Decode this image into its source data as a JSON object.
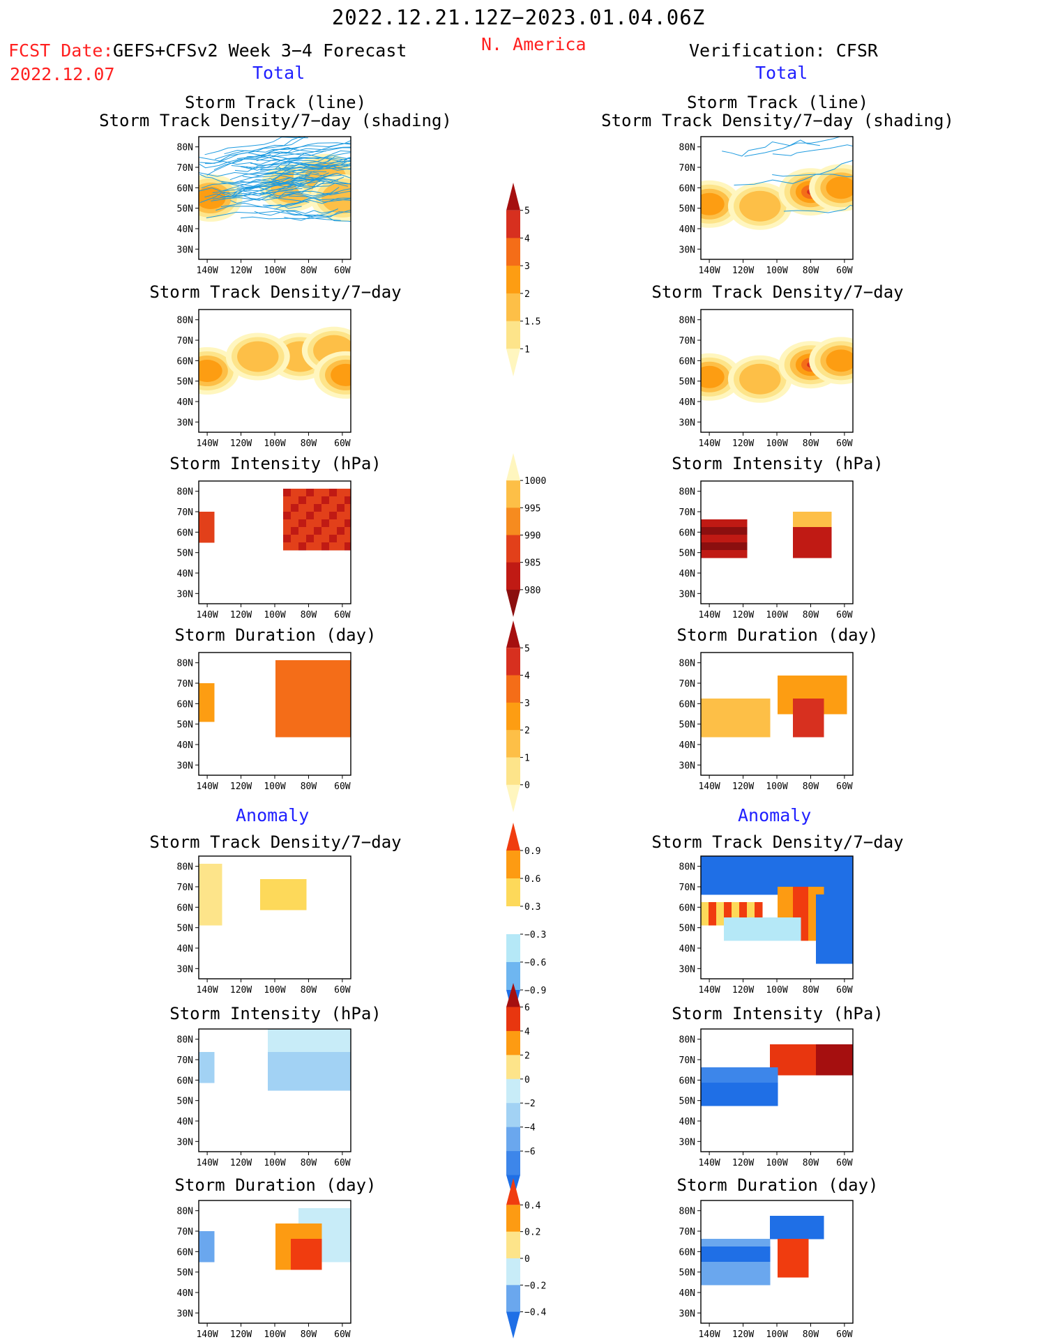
{
  "header": {
    "title": "2022.12.21.12Z−2023.01.04.06Z",
    "fcst_label": "FCST Date:",
    "fcst_model": "GEFS+CFSv2 Week 3−4 Forecast",
    "fcst_date": "2022.12.07",
    "region": "N. America",
    "verification": "Verification: CFSR",
    "left_section_total": "Total",
    "right_section_total": "Total",
    "left_section_anomaly": "Anomaly",
    "right_section_anomaly": "Anomaly"
  },
  "colors": {
    "title_red": "#ff2020",
    "section_blue": "#2020ff",
    "track_line": "#1e9be0",
    "map_lines": "#000000"
  },
  "map_axes": {
    "lat_labels": [
      "80N",
      "70N",
      "60N",
      "50N",
      "40N",
      "30N"
    ],
    "lon_labels": [
      "140W",
      "120W",
      "100W",
      "80W",
      "60W"
    ],
    "lon_range": [
      -145,
      -55
    ],
    "lat_range": [
      25,
      85
    ]
  },
  "panels": {
    "track": {
      "title1": "Storm Track (line)",
      "title2": "Storm Track Density/7−day (shading)"
    },
    "density": {
      "title": "Storm Track Density/7−day"
    },
    "intensity": {
      "title": "Storm Intensity (hPa)"
    },
    "duration": {
      "title": "Storm Duration (day)"
    },
    "anom_density": {
      "title": "Storm Track Density/7−day"
    },
    "anom_intensity": {
      "title": "Storm Intensity (hPa)"
    },
    "anom_duration": {
      "title": "Storm Duration (day)"
    }
  },
  "colorbars": {
    "density_total": {
      "labels": [
        "5",
        "4",
        "3",
        "2",
        "1.5",
        "1"
      ],
      "colors": [
        "#a50f0f",
        "#d7301f",
        "#f46d18",
        "#fd9d12",
        "#fdbf47",
        "#fde48a",
        "#fff6bf"
      ]
    },
    "intensity_total": {
      "labels": [
        "1000",
        "995",
        "990",
        "985",
        "980"
      ],
      "colors": [
        "#fff6bf",
        "#fdbf47",
        "#f68b1f",
        "#e2401a",
        "#c01a14",
        "#8b0f0f"
      ]
    },
    "duration_total": {
      "labels": [
        "5",
        "4",
        "3",
        "2",
        "1",
        "0"
      ],
      "colors": [
        "#a50f0f",
        "#d7301f",
        "#f46d18",
        "#fd9d12",
        "#fdbf47",
        "#fde48a",
        "#fff6bf"
      ]
    },
    "density_anom": {
      "labels": [
        "0.9",
        "0.6",
        "0.3",
        "−0.3",
        "−0.6",
        "−0.9"
      ],
      "colors": [
        "#f03c0f",
        "#fd9b12",
        "#fdd95a",
        "#ffffff",
        "#b5e8f7",
        "#6eb6f0",
        "#1f6fe6"
      ]
    },
    "intensity_anom": {
      "labels": [
        "6",
        "4",
        "2",
        "0",
        "−2",
        "−4",
        "−6"
      ],
      "colors": [
        "#a50f0f",
        "#e8360f",
        "#fd9b12",
        "#fde48a",
        "#c8ecf8",
        "#a2d2f4",
        "#6aa7ee",
        "#3d86ea",
        "#1f6fe6"
      ]
    },
    "duration_anom": {
      "labels": [
        "0.4",
        "0.2",
        "0",
        "−0.2",
        "−0.4"
      ],
      "colors": [
        "#f03c0f",
        "#fd9b12",
        "#fde48a",
        "#c8ecf8",
        "#6aa7ee",
        "#1f6fe6"
      ]
    }
  },
  "chart_data": [
    {
      "type": "heatmap",
      "panel": "forecast",
      "title": "Storm Track (line) / Storm Track Density/7−day (shading)",
      "xlabel": "",
      "ylabel": "",
      "xlim": [
        -145,
        -55
      ],
      "ylim": [
        25,
        85
      ],
      "blobs": [
        {
          "lon": -138,
          "lat": 55,
          "value": 2.5
        },
        {
          "lon": -90,
          "lat": 60,
          "value": 1.5
        },
        {
          "lon": -70,
          "lat": 65,
          "value": 2
        },
        {
          "lon": -60,
          "lat": 55,
          "value": 2
        }
      ]
    },
    {
      "type": "heatmap",
      "panel": "verification",
      "title": "Storm Track (line) / Storm Track Density/7−day (shading)",
      "xlabel": "",
      "ylabel": "",
      "xlim": [
        -145,
        -55
      ],
      "ylim": [
        25,
        85
      ],
      "blobs": [
        {
          "lon": -140,
          "lat": 52,
          "value": 3
        },
        {
          "lon": -110,
          "lat": 51,
          "value": 1.5
        },
        {
          "lon": -80,
          "lat": 58,
          "value": 5
        },
        {
          "lon": -62,
          "lat": 60,
          "value": 3
        }
      ]
    },
    {
      "type": "heatmap",
      "panel": "forecast",
      "title": "Storm Track Density/7−day",
      "xlabel": "",
      "ylabel": "",
      "xlim": [
        -145,
        -55
      ],
      "ylim": [
        25,
        85
      ],
      "blobs": [
        {
          "lon": -140,
          "lat": 55,
          "value": 3
        },
        {
          "lon": -85,
          "lat": 62,
          "value": 2
        },
        {
          "lon": -65,
          "lat": 65,
          "value": 2
        },
        {
          "lon": -58,
          "lat": 53,
          "value": 3
        },
        {
          "lon": -110,
          "lat": 62,
          "value": 1.5
        }
      ]
    },
    {
      "type": "heatmap",
      "panel": "verification",
      "title": "Storm Track Density/7−day",
      "xlabel": "",
      "ylabel": "",
      "xlim": [
        -145,
        -55
      ],
      "ylim": [
        25,
        85
      ],
      "blobs": [
        {
          "lon": -140,
          "lat": 52,
          "value": 3
        },
        {
          "lon": -110,
          "lat": 51,
          "value": 1.5
        },
        {
          "lon": -80,
          "lat": 58,
          "value": 5
        },
        {
          "lon": -62,
          "lat": 60,
          "value": 3
        }
      ]
    },
    {
      "type": "heatmap",
      "panel": "forecast",
      "title": "Storm Intensity (hPa)",
      "xlabel": "",
      "ylabel": "",
      "xlim": [
        -145,
        -55
      ],
      "ylim": [
        25,
        85
      ],
      "units": "hPa"
    },
    {
      "type": "heatmap",
      "panel": "verification",
      "title": "Storm Intensity (hPa)",
      "xlabel": "",
      "ylabel": "",
      "xlim": [
        -145,
        -55
      ],
      "ylim": [
        25,
        85
      ],
      "units": "hPa"
    },
    {
      "type": "heatmap",
      "panel": "forecast",
      "title": "Storm Duration (day)",
      "xlabel": "",
      "ylabel": "",
      "xlim": [
        -145,
        -55
      ],
      "ylim": [
        25,
        85
      ],
      "units": "day"
    },
    {
      "type": "heatmap",
      "panel": "verification",
      "title": "Storm Duration (day)",
      "xlabel": "",
      "ylabel": "",
      "xlim": [
        -145,
        -55
      ],
      "ylim": [
        25,
        85
      ],
      "units": "day"
    },
    {
      "type": "heatmap",
      "panel": "forecast anomaly",
      "title": "Storm Track Density/7−day",
      "xlabel": "",
      "ylabel": "",
      "xlim": [
        -145,
        -55
      ],
      "ylim": [
        25,
        85
      ]
    },
    {
      "type": "heatmap",
      "panel": "verification anomaly",
      "title": "Storm Track Density/7−day",
      "xlabel": "",
      "ylabel": "",
      "xlim": [
        -145,
        -55
      ],
      "ylim": [
        25,
        85
      ]
    },
    {
      "type": "heatmap",
      "panel": "forecast anomaly",
      "title": "Storm Intensity (hPa)",
      "xlabel": "",
      "ylabel": "",
      "xlim": [
        -145,
        -55
      ],
      "ylim": [
        25,
        85
      ],
      "units": "hPa"
    },
    {
      "type": "heatmap",
      "panel": "verification anomaly",
      "title": "Storm Intensity (hPa)",
      "xlabel": "",
      "ylabel": "",
      "xlim": [
        -145,
        -55
      ],
      "ylim": [
        25,
        85
      ],
      "units": "hPa"
    },
    {
      "type": "heatmap",
      "panel": "forecast anomaly",
      "title": "Storm Duration (day)",
      "xlabel": "",
      "ylabel": "",
      "xlim": [
        -145,
        -55
      ],
      "ylim": [
        25,
        85
      ],
      "units": "day"
    },
    {
      "type": "heatmap",
      "panel": "verification anomaly",
      "title": "Storm Duration (day)",
      "xlabel": "",
      "ylabel": "",
      "xlim": [
        -145,
        -55
      ],
      "ylim": [
        25,
        85
      ],
      "units": "day"
    }
  ]
}
